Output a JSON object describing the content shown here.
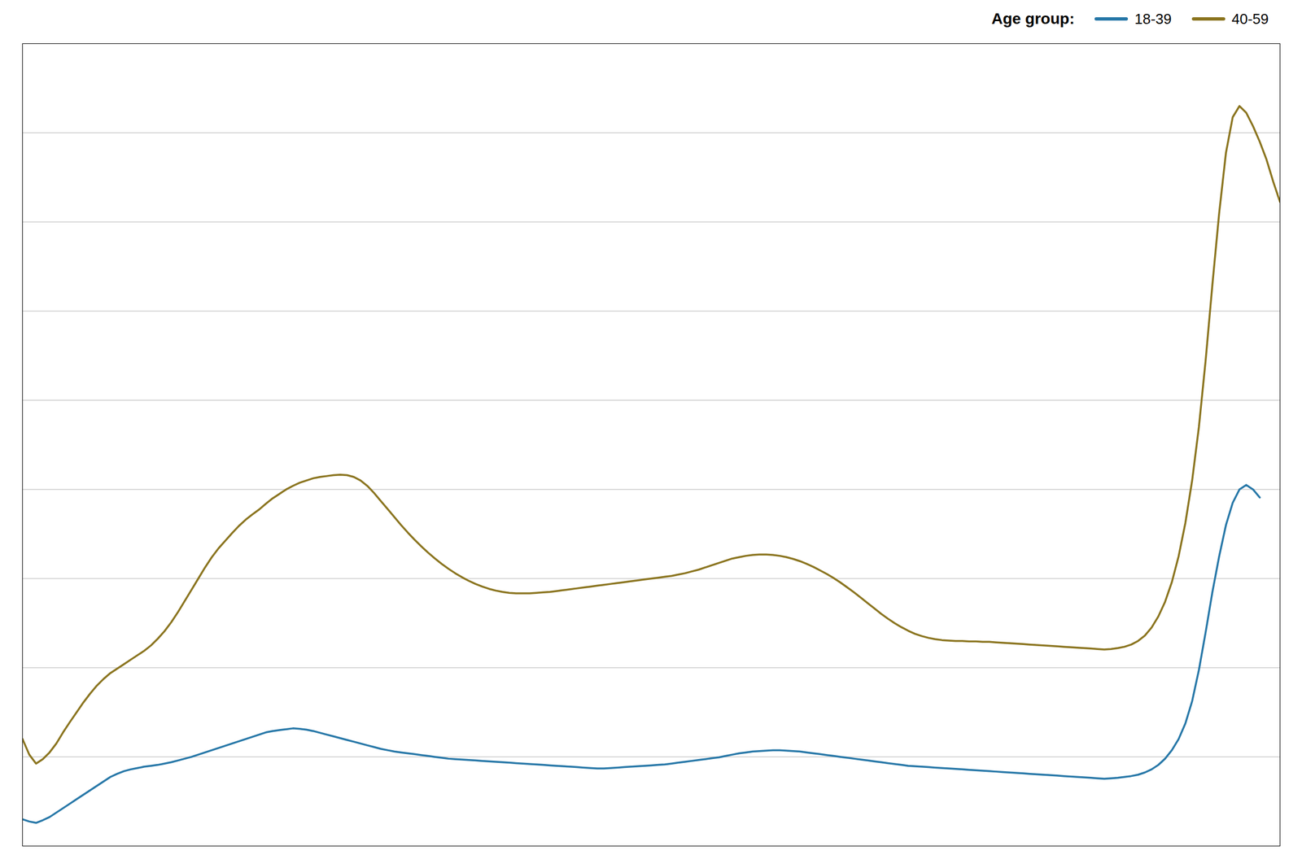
{
  "chart_data": {
    "type": "line",
    "legend_title": "Age group:",
    "legend": "upper right",
    "grid": true,
    "tick_labels": false,
    "xlim": [
      0,
      186
    ],
    "ylim": [
      0,
      1800
    ],
    "yticks": [
      200,
      400,
      600,
      800,
      1000,
      1200,
      1400,
      1600
    ],
    "series": [
      {
        "name": "18-39",
        "color": "#2878a8",
        "values": [
          60,
          55,
          52,
          58,
          65,
          75,
          85,
          95,
          105,
          115,
          125,
          135,
          145,
          155,
          162,
          168,
          172,
          175,
          178,
          180,
          182,
          185,
          188,
          192,
          196,
          200,
          205,
          210,
          215,
          220,
          225,
          230,
          235,
          240,
          245,
          250,
          255,
          258,
          260,
          262,
          264,
          263,
          261,
          258,
          254,
          250,
          246,
          242,
          238,
          234,
          230,
          226,
          222,
          218,
          215,
          212,
          210,
          208,
          206,
          204,
          202,
          200,
          198,
          196,
          195,
          194,
          193,
          192,
          191,
          190,
          189,
          188,
          187,
          186,
          185,
          184,
          183,
          182,
          181,
          180,
          179,
          178,
          177,
          176,
          175,
          174,
          174,
          175,
          176,
          177,
          178,
          179,
          180,
          181,
          182,
          183,
          185,
          187,
          189,
          191,
          193,
          195,
          197,
          199,
          202,
          205,
          208,
          210,
          212,
          213,
          214,
          215,
          215,
          214,
          213,
          212,
          210,
          208,
          206,
          204,
          202,
          200,
          198,
          196,
          194,
          192,
          190,
          188,
          186,
          184,
          182,
          180,
          179,
          178,
          177,
          176,
          175,
          174,
          173,
          172,
          171,
          170,
          169,
          168,
          167,
          166,
          165,
          164,
          163,
          162,
          161,
          160,
          159,
          158,
          157,
          156,
          155,
          154,
          153,
          152,
          151,
          152,
          153,
          155,
          157,
          160,
          165,
          172,
          182,
          196,
          215,
          240,
          275,
          325,
          395,
          480,
          570,
          650,
          720,
          770,
          800,
          810,
          800,
          782,
          null,
          null,
          null
        ]
      },
      {
        "name": "40-59",
        "color": "#8B7520",
        "values": [
          240,
          205,
          185,
          195,
          210,
          230,
          255,
          278,
          300,
          322,
          342,
          360,
          375,
          388,
          398,
          408,
          418,
          428,
          438,
          450,
          465,
          482,
          502,
          525,
          550,
          575,
          600,
          625,
          648,
          668,
          685,
          702,
          718,
          732,
          744,
          755,
          768,
          780,
          790,
          800,
          808,
          815,
          820,
          825,
          828,
          830,
          832,
          833,
          832,
          828,
          820,
          808,
          792,
          774,
          756,
          738,
          720,
          703,
          687,
          672,
          658,
          645,
          633,
          622,
          612,
          603,
          595,
          588,
          582,
          577,
          573,
          570,
          568,
          567,
          567,
          567,
          568,
          569,
          570,
          572,
          574,
          576,
          578,
          580,
          582,
          584,
          586,
          588,
          590,
          592,
          594,
          596,
          598,
          600,
          602,
          604,
          606,
          609,
          612,
          616,
          620,
          625,
          630,
          635,
          640,
          645,
          648,
          651,
          653,
          654,
          654,
          653,
          651,
          648,
          644,
          639,
          633,
          626,
          618,
          610,
          601,
          591,
          580,
          569,
          557,
          545,
          533,
          521,
          510,
          500,
          491,
          483,
          476,
          471,
          467,
          464,
          462,
          461,
          460,
          460,
          459,
          459,
          458,
          458,
          457,
          456,
          455,
          454,
          453,
          452,
          451,
          450,
          449,
          448,
          447,
          446,
          445,
          444,
          443,
          442,
          441,
          442,
          444,
          447,
          452,
          460,
          472,
          490,
          515,
          548,
          592,
          650,
          725,
          820,
          940,
          1090,
          1260,
          1420,
          1555,
          1635,
          1660,
          1645,
          1615,
          1580,
          1540,
          1490,
          1445
        ]
      }
    ]
  }
}
